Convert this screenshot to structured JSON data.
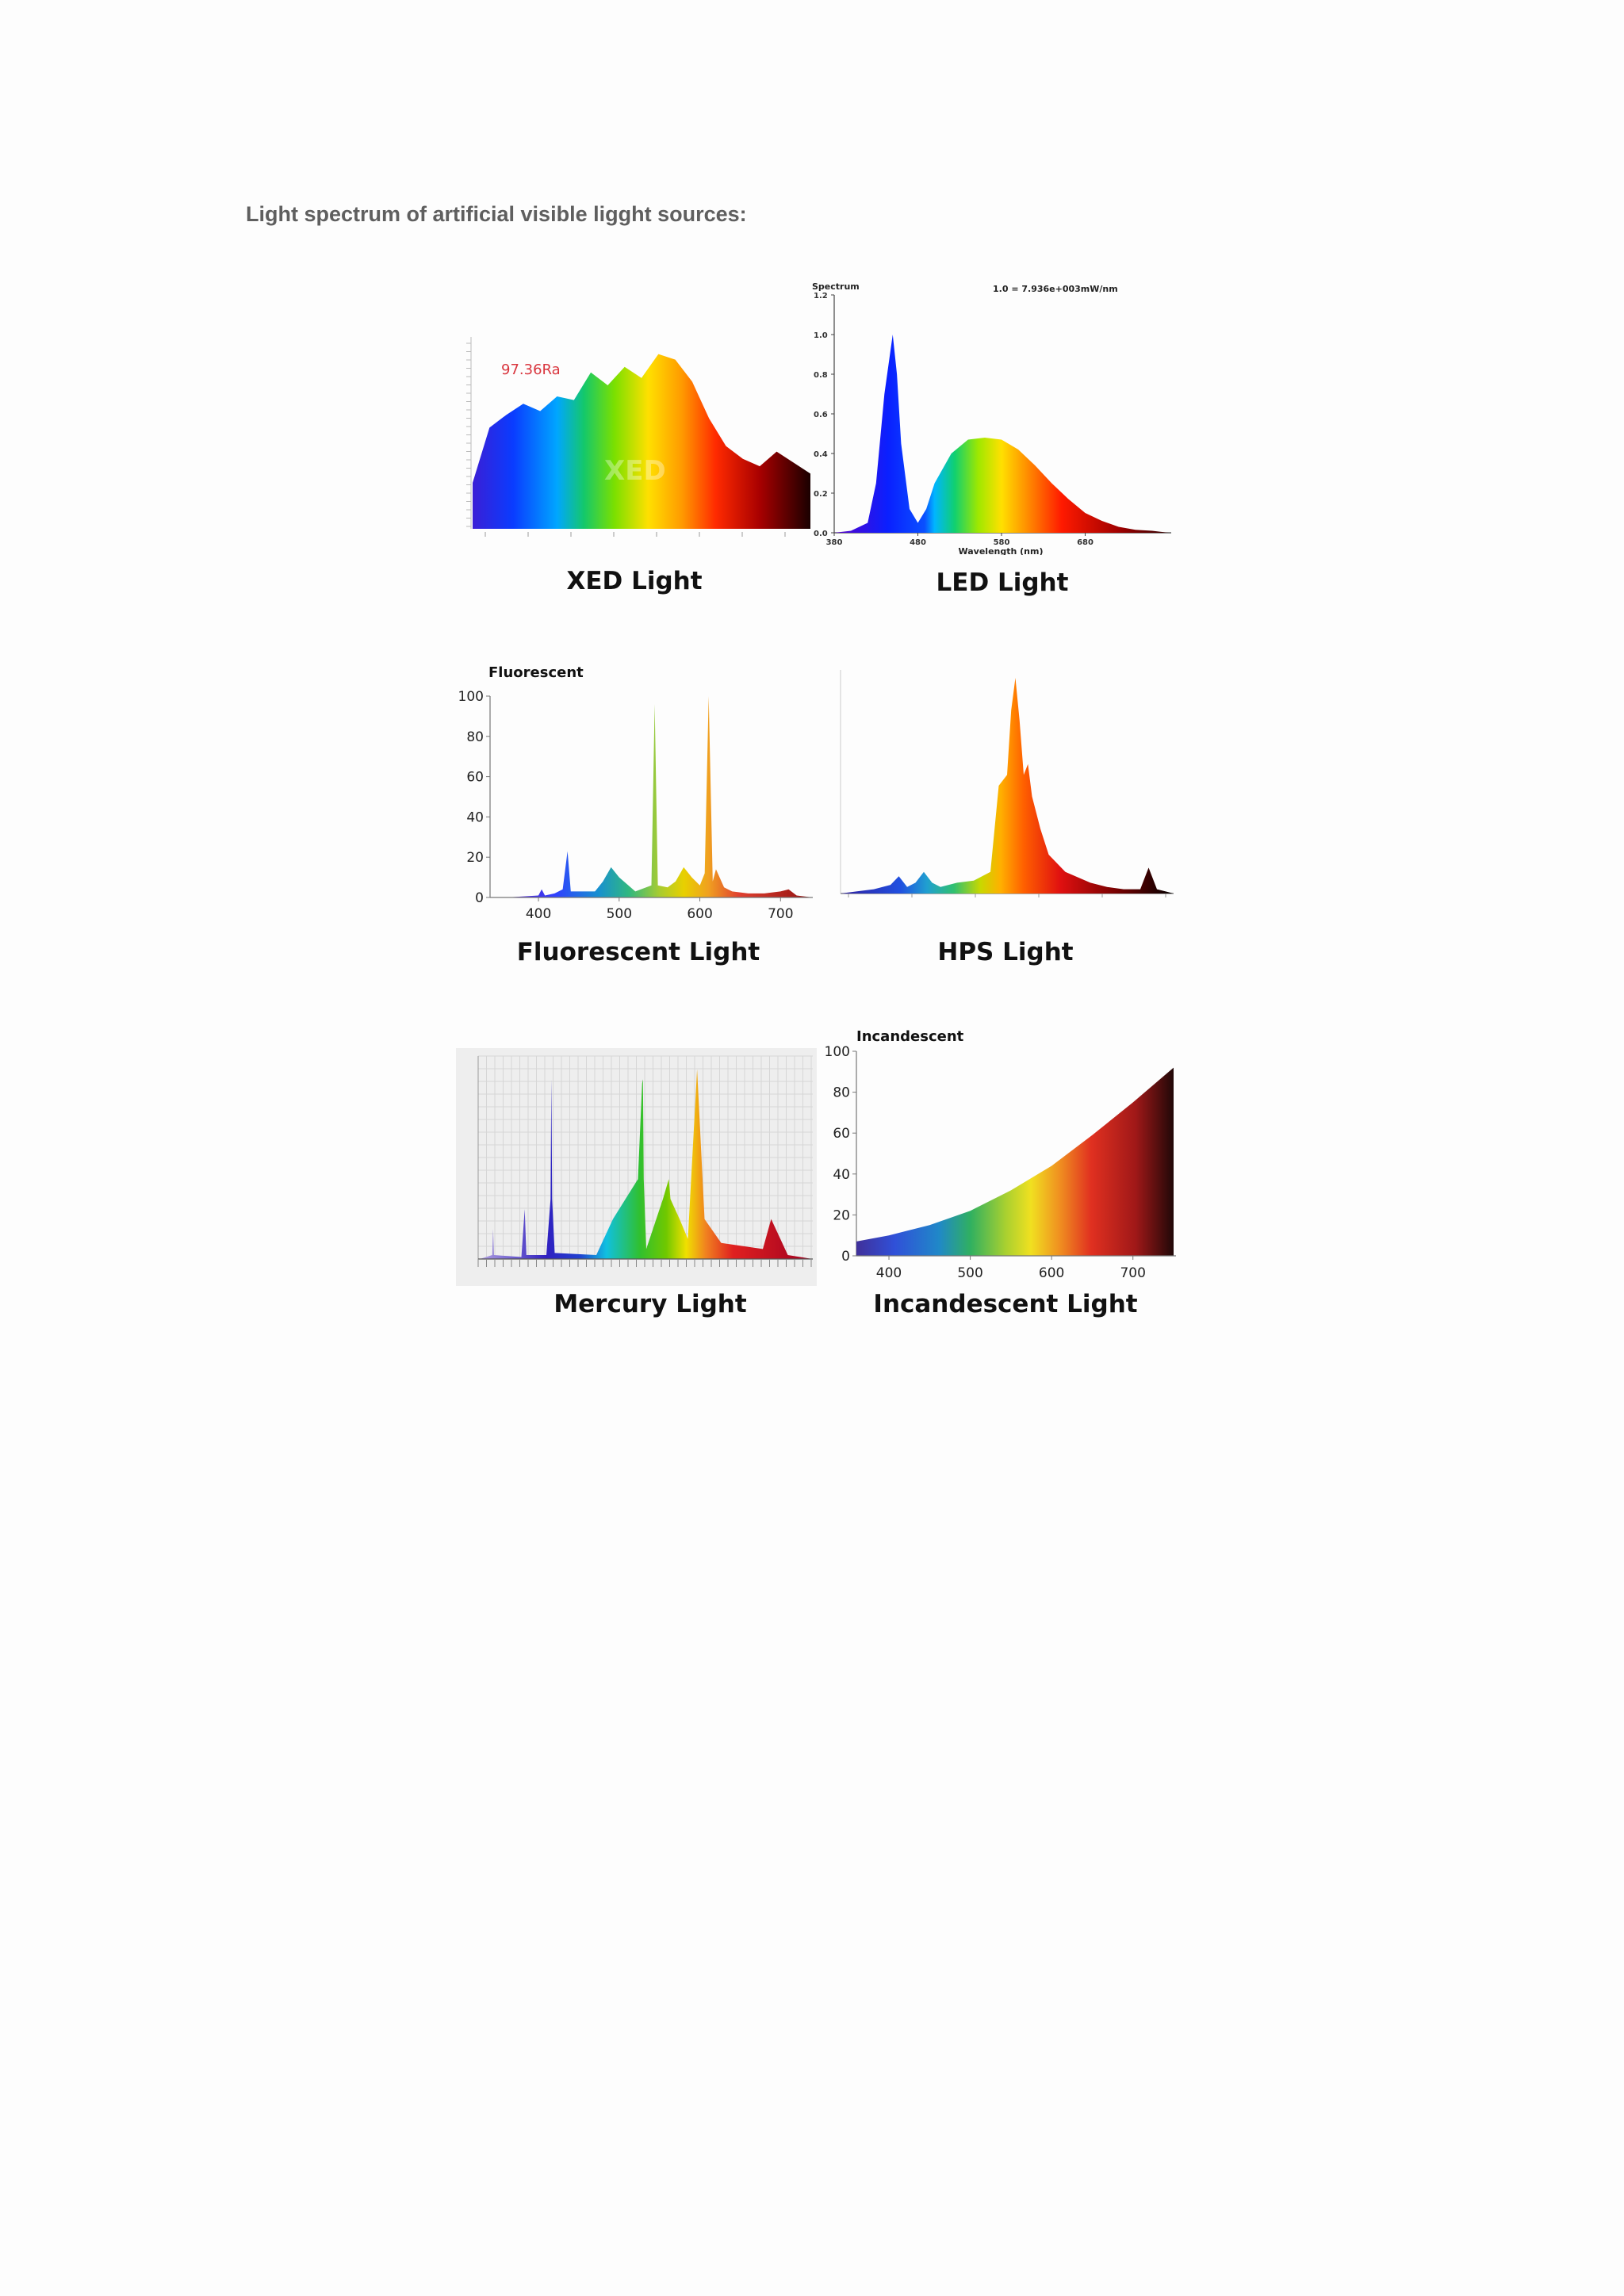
{
  "heading": "Light spectrum of artificial visible ligght sources:",
  "panels": {
    "xed": {
      "caption": "XED Light",
      "annotation": "97.36Ra",
      "watermark": "XED"
    },
    "led": {
      "caption": "LED Light",
      "ylabel": "Spectrum",
      "header_note": "1.0 = 7.936e+003mW/nm",
      "xlabel": "Wavelength (nm)",
      "y_ticks": [
        "0.0",
        "0.2",
        "0.4",
        "0.6",
        "0.8",
        "1.0",
        "1.2"
      ],
      "x_ticks": [
        "380",
        "480",
        "580",
        "680"
      ]
    },
    "fluorescent": {
      "caption": "Fluorescent Light",
      "title": "Fluorescent",
      "y_ticks": [
        "0",
        "20",
        "40",
        "60",
        "80",
        "100"
      ],
      "x_ticks": [
        "400",
        "500",
        "600",
        "700"
      ]
    },
    "hps": {
      "caption": "HPS Light"
    },
    "mercury": {
      "caption": "Mercury Light"
    },
    "incandescent": {
      "caption": "Incandescent Light",
      "title": "Incandescent",
      "y_ticks": [
        "0",
        "20",
        "40",
        "60",
        "80",
        "100"
      ],
      "x_ticks": [
        "400",
        "500",
        "600",
        "700"
      ]
    }
  },
  "colors": {
    "heading": "#5f5f5f",
    "xed_annotation": "#d9363e"
  },
  "chart_data": [
    {
      "type": "area",
      "title": "",
      "x": [
        380,
        400,
        420,
        440,
        460,
        480,
        500,
        520,
        540,
        560,
        580,
        600,
        620,
        640,
        660,
        680,
        700,
        720,
        740,
        760,
        780
      ],
      "values": [
        0.25,
        0.55,
        0.62,
        0.68,
        0.64,
        0.72,
        0.7,
        0.85,
        0.78,
        0.88,
        0.82,
        0.95,
        0.92,
        0.8,
        0.6,
        0.45,
        0.38,
        0.34,
        0.42,
        0.36,
        0.3
      ]
    },
    {
      "type": "area",
      "title": "",
      "ylabel": "Spectrum",
      "xlabel": "Wavelength (nm)",
      "ylim": [
        0,
        1.2
      ],
      "x": [
        380,
        400,
        420,
        430,
        440,
        450,
        455,
        460,
        470,
        480,
        490,
        500,
        520,
        540,
        560,
        580,
        600,
        620,
        640,
        660,
        680,
        700,
        720,
        740,
        760,
        780
      ],
      "values": [
        0.0,
        0.01,
        0.05,
        0.25,
        0.7,
        1.0,
        0.8,
        0.45,
        0.12,
        0.05,
        0.12,
        0.25,
        0.4,
        0.47,
        0.48,
        0.47,
        0.42,
        0.34,
        0.25,
        0.17,
        0.1,
        0.06,
        0.03,
        0.015,
        0.01,
        0.0
      ]
    },
    {
      "type": "area",
      "title": "Fluorescent",
      "ylim": [
        0,
        100
      ],
      "x": [
        360,
        400,
        404,
        408,
        420,
        430,
        436,
        440,
        470,
        480,
        490,
        500,
        520,
        540,
        544,
        548,
        560,
        570,
        580,
        590,
        600,
        606,
        611,
        616,
        620,
        630,
        640,
        660,
        680,
        700,
        710,
        720,
        740
      ],
      "values": [
        0,
        1,
        4,
        1,
        2,
        4,
        23,
        3,
        3,
        8,
        15,
        10,
        3,
        6,
        96,
        6,
        5,
        8,
        15,
        10,
        6,
        12,
        100,
        8,
        14,
        5,
        3,
        2,
        2,
        3,
        4,
        1,
        0
      ]
    },
    {
      "type": "area",
      "title": "",
      "x": [
        380,
        400,
        420,
        440,
        450,
        460,
        470,
        480,
        490,
        500,
        520,
        540,
        560,
        570,
        580,
        585,
        590,
        595,
        600,
        605,
        610,
        620,
        630,
        650,
        680,
        700,
        720,
        740,
        750,
        760,
        770,
        780
      ],
      "values": [
        0.0,
        0.01,
        0.02,
        0.04,
        0.08,
        0.03,
        0.05,
        0.1,
        0.05,
        0.03,
        0.05,
        0.06,
        0.1,
        0.5,
        0.55,
        0.85,
        1.0,
        0.8,
        0.55,
        0.6,
        0.45,
        0.3,
        0.18,
        0.1,
        0.05,
        0.03,
        0.02,
        0.02,
        0.12,
        0.02,
        0.01,
        0.0
      ]
    },
    {
      "type": "area",
      "title": "",
      "x": [
        350,
        365,
        366,
        367,
        400,
        404,
        406,
        430,
        435,
        436,
        437,
        440,
        490,
        510,
        540,
        545,
        546,
        547,
        550,
        570,
        577,
        579,
        590,
        600,
        611,
        620,
        640,
        690,
        700,
        720,
        750
      ],
      "values": [
        0,
        2,
        15,
        2,
        1,
        25,
        2,
        2,
        30,
        90,
        30,
        3,
        2,
        20,
        40,
        88,
        90,
        40,
        5,
        30,
        40,
        30,
        20,
        10,
        95,
        20,
        8,
        5,
        20,
        2,
        0
      ]
    },
    {
      "type": "area",
      "title": "Incandescent",
      "ylim": [
        0,
        100
      ],
      "x": [
        360,
        400,
        450,
        500,
        550,
        600,
        650,
        700,
        750
      ],
      "values": [
        7,
        10,
        15,
        22,
        32,
        44,
        59,
        75,
        92
      ]
    }
  ]
}
